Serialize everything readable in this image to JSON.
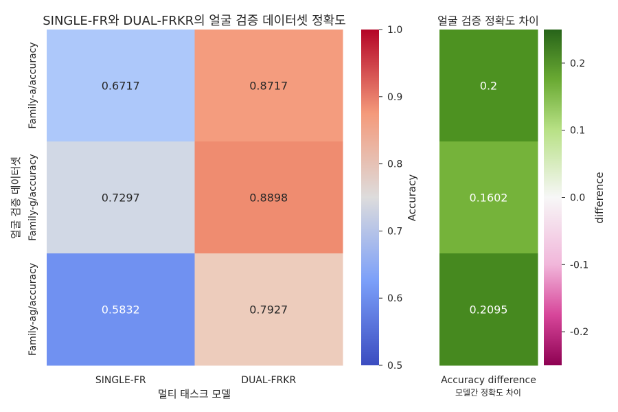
{
  "chart_data": [
    {
      "type": "heatmap",
      "title": "SINGLE-FR와 DUAL-FRKR의 얼굴 검증 데이터셋 정확도",
      "xlabel": "멀티 태스크 모델",
      "ylabel": "얼굴 검증 데이터셋",
      "columns": [
        "SINGLE-FR",
        "DUAL-FRKR"
      ],
      "rows": [
        "Family-a/accuracy",
        "Family-g/accuracy",
        "Family-ag/accuracy"
      ],
      "values": [
        [
          0.6717,
          0.8717
        ],
        [
          0.7297,
          0.8898
        ],
        [
          0.5832,
          0.7927
        ]
      ],
      "value_labels": [
        [
          "0.6717",
          "0.8717"
        ],
        [
          "0.7297",
          "0.8898"
        ],
        [
          "0.5832",
          "0.7927"
        ]
      ],
      "colorbar": {
        "label": "Accuracy",
        "colormap": "coolwarm",
        "range": [
          0.5,
          1.0
        ],
        "ticks": [
          "0.5",
          "0.6",
          "0.7",
          "0.8",
          "0.9",
          "1.0"
        ]
      }
    },
    {
      "type": "heatmap",
      "title": "얼굴 검증 정확도 차이",
      "xlabel": "모델간 정확도 차이",
      "columns": [
        "Accuracy difference"
      ],
      "rows": [
        "Family-a/accuracy",
        "Family-g/accuracy",
        "Family-ag/accuracy"
      ],
      "values": [
        [
          0.2
        ],
        [
          0.1602
        ],
        [
          0.2095
        ]
      ],
      "value_labels": [
        [
          "0.2"
        ],
        [
          "0.1602"
        ],
        [
          "0.2095"
        ]
      ],
      "colorbar": {
        "label": "difference",
        "colormap": "PiYG",
        "range": [
          -0.25,
          0.25
        ],
        "ticks": [
          "0.2",
          "0.1",
          "0.0",
          "-0.1",
          "-0.2"
        ]
      }
    }
  ]
}
